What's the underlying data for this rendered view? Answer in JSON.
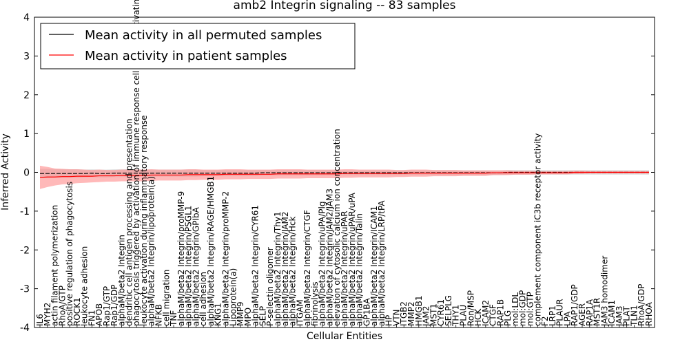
{
  "chart_data": {
    "type": "line",
    "title": "amb2 Integrin signaling -- 83 samples",
    "xlabel": "Cellular Entities",
    "ylabel": "Inferred Activity",
    "ylim": [
      -4,
      4
    ],
    "yticks": [
      -4,
      -3,
      -2,
      -1,
      0,
      1,
      2,
      3,
      4
    ],
    "grid": false,
    "legend_position": "top-left",
    "categories": [
      "IL6",
      "MYH2",
      "actin filament polymerization",
      "RhoA/GTP",
      "positive regulation of phagocytosis",
      "ROCK1",
      "leukocyte adhesion",
      "FN1",
      "APOB",
      "Rap1/GTP",
      "Rap1/GDP",
      "alphaM/beta2 Integrin",
      "dendritic cell antigen processing and presentation",
      "phagocytosis triggered by activation of immune response cell surface activating receptor",
      "leukocyte activation during inflammatory response",
      "alphaM/beta2 Integrin/lipoprotein(a)",
      "NFKB",
      "cell migration",
      "TNF",
      "alphaM/beta2 Integrin/proMMP-9",
      "alphaM/beta2 Integrin/PSGL1",
      "alphaM/beta2 Integrin/GPIbA",
      "cell adhesion",
      "alphaM/beta2 Integrin/RAGE/HMGB1",
      "KNG1",
      "alphaM/beta2 Integrin/proMMP-2",
      "Lipoprotein(a)",
      "MMP9",
      "MPO",
      "alphaM/beta2 Integrin/CYR61",
      "SELP",
      "P-selectin oligomer",
      "alphaM/beta2 Integrin/Thy1",
      "alphaM/beta2 Integrin/JAM2",
      "alphaM/beta2 Integrin/Hck",
      "ITGAM",
      "alphaM/beta2 Integrin/CTGF",
      "fibrinolysis",
      "alphaM/beta2 Integrin/uPA/Plg",
      "alphaM/beta2 Integrin/JAM2/JAM3",
      "elevation of cytosolic calcium ion concentration",
      "alphaM/beta2 Integrin/uPAR",
      "alphaM/beta2 Integrin/uPAR/uPA",
      "alphaM/beta2 Integrin/Talin",
      "GP1BA",
      "alphaM/beta2 Integrin/ICAM1",
      "alphaM/beta2 Integrin/LRP/tPA",
      "HP",
      "VTN",
      "ITGB2",
      "MMP2",
      "HMGB1",
      "JAM2",
      "MST1",
      "CYR61",
      "SELPLG",
      "THY1",
      "PLAU",
      "Ron/MSP",
      "HCK",
      "ICAM2",
      "CTGF",
      "RAP1B",
      "PLG",
      "mol:LDL",
      "mol:GDP",
      "mol:GTP",
      "complement component iC3b receptor activity",
      "F2",
      "LRP1",
      "PLAUR",
      "LPA",
      "RAP1/GDP",
      "AGER",
      "RAP1A",
      "MST1R",
      "JAM3 homodimer",
      "ICAM1",
      "JAM3",
      "PLAT",
      "TLN1",
      "RhoA/GDP",
      "RHOA"
    ],
    "series": [
      {
        "name": "Mean activity in all permuted samples",
        "color": "#000000",
        "band_color": "#b0b0b0",
        "values": [
          -0.03,
          -0.03,
          -0.03,
          -0.03,
          -0.03,
          -0.03,
          -0.03,
          -0.02,
          -0.03,
          -0.03,
          -0.02,
          -0.02,
          -0.02,
          -0.02,
          -0.02,
          -0.02,
          -0.02,
          -0.02,
          -0.02,
          -0.02,
          -0.02,
          -0.02,
          -0.02,
          -0.02,
          -0.02,
          -0.02,
          -0.02,
          -0.02,
          -0.02,
          -0.02,
          -0.01,
          -0.01,
          -0.01,
          -0.01,
          -0.01,
          -0.01,
          -0.01,
          -0.01,
          -0.01,
          -0.01,
          -0.01,
          -0.01,
          -0.01,
          -0.01,
          -0.01,
          -0.01,
          -0.01,
          -0.01,
          -0.01,
          -0.01,
          -0.01,
          -0.01,
          -0.01,
          -0.01,
          -0.01,
          -0.01,
          -0.01,
          -0.01,
          -0.01,
          -0.01,
          -0.01,
          -0.01,
          -0.01,
          0.0,
          0.0,
          0.0,
          0.0,
          0.0,
          0.0,
          0.0,
          0.0,
          0.0,
          0.0,
          0.0,
          0.0,
          0.0,
          0.0,
          0.0,
          0.0,
          0.0,
          0.0,
          0.0,
          0.0
        ],
        "spread": [
          0.12,
          0.12,
          0.11,
          0.11,
          0.11,
          0.11,
          0.1,
          0.1,
          0.1,
          0.1,
          0.1,
          0.1,
          0.1,
          0.1,
          0.09,
          0.09,
          0.09,
          0.09,
          0.09,
          0.09,
          0.09,
          0.09,
          0.08,
          0.08,
          0.08,
          0.08,
          0.08,
          0.08,
          0.08,
          0.08,
          0.07,
          0.07,
          0.07,
          0.07,
          0.07,
          0.07,
          0.07,
          0.07,
          0.07,
          0.07,
          0.06,
          0.06,
          0.06,
          0.06,
          0.06,
          0.06,
          0.06,
          0.06,
          0.06,
          0.06,
          0.06,
          0.06,
          0.06,
          0.06,
          0.06,
          0.06,
          0.06,
          0.06,
          0.06,
          0.06,
          0.06,
          0.06,
          0.06,
          0.06,
          0.06,
          0.06,
          0.06,
          0.06,
          0.06,
          0.06,
          0.06,
          0.06,
          0.06,
          0.06,
          0.06,
          0.06,
          0.06,
          0.06,
          0.06,
          0.06,
          0.06,
          0.06,
          0.06
        ]
      },
      {
        "name": "Mean activity in patient samples",
        "color": "#ff0000",
        "band_color": "#ff7f7f",
        "values": [
          -0.13,
          -0.12,
          -0.12,
          -0.11,
          -0.11,
          -0.1,
          -0.1,
          -0.1,
          -0.09,
          -0.09,
          -0.09,
          -0.08,
          -0.08,
          -0.08,
          -0.08,
          -0.07,
          -0.07,
          -0.07,
          -0.07,
          -0.07,
          -0.06,
          -0.06,
          -0.06,
          -0.06,
          -0.06,
          -0.05,
          -0.05,
          -0.05,
          -0.05,
          -0.05,
          -0.05,
          -0.05,
          -0.04,
          -0.04,
          -0.04,
          -0.04,
          -0.04,
          -0.04,
          -0.04,
          -0.04,
          -0.04,
          -0.03,
          -0.03,
          -0.03,
          -0.03,
          -0.03,
          -0.03,
          -0.03,
          -0.03,
          -0.03,
          -0.02,
          -0.02,
          -0.02,
          -0.02,
          -0.02,
          -0.02,
          -0.02,
          -0.02,
          -0.02,
          -0.02,
          -0.02,
          -0.01,
          -0.01,
          -0.01,
          -0.01,
          -0.01,
          -0.01,
          -0.01,
          -0.01,
          -0.01,
          -0.01,
          -0.01,
          0.0,
          0.0,
          0.0,
          0.0,
          0.0,
          0.0,
          0.0,
          0.0,
          0.0,
          0.0,
          0.0
        ],
        "spread": [
          0.3,
          0.26,
          0.22,
          0.2,
          0.19,
          0.18,
          0.17,
          0.16,
          0.16,
          0.15,
          0.15,
          0.15,
          0.15,
          0.15,
          0.15,
          0.15,
          0.14,
          0.14,
          0.14,
          0.14,
          0.14,
          0.14,
          0.13,
          0.13,
          0.13,
          0.13,
          0.13,
          0.13,
          0.12,
          0.12,
          0.12,
          0.12,
          0.12,
          0.12,
          0.12,
          0.12,
          0.11,
          0.11,
          0.11,
          0.11,
          0.11,
          0.11,
          0.11,
          0.1,
          0.1,
          0.1,
          0.1,
          0.1,
          0.09,
          0.09,
          0.09,
          0.09,
          0.09,
          0.08,
          0.08,
          0.08,
          0.08,
          0.07,
          0.07,
          0.07,
          0.07,
          0.06,
          0.06,
          0.06,
          0.05,
          0.05,
          0.05,
          0.04,
          0.04,
          0.04,
          0.04,
          0.04,
          0.04,
          0.04,
          0.03,
          0.03,
          0.03,
          0.03,
          0.03,
          0.03,
          0.03,
          0.03,
          0.03
        ]
      }
    ]
  }
}
